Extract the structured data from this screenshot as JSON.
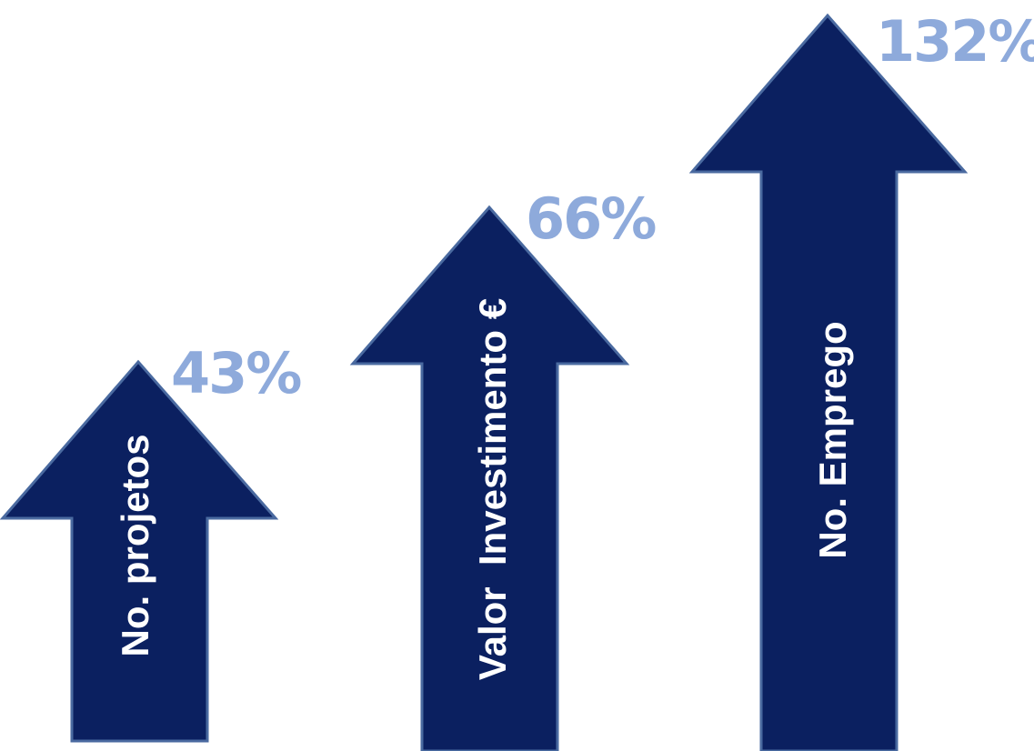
{
  "colors": {
    "arrow_fill": "#0b2060",
    "arrow_stroke": "#4a6aa0",
    "percent_text": "#8eaadb",
    "label_text": "#ffffff"
  },
  "arrows": [
    {
      "label": "No. projetos",
      "percent": "43%"
    },
    {
      "label": "Valor  Investimento €",
      "percent": "66%"
    },
    {
      "label": "No. Emprego",
      "percent": "132%"
    }
  ]
}
